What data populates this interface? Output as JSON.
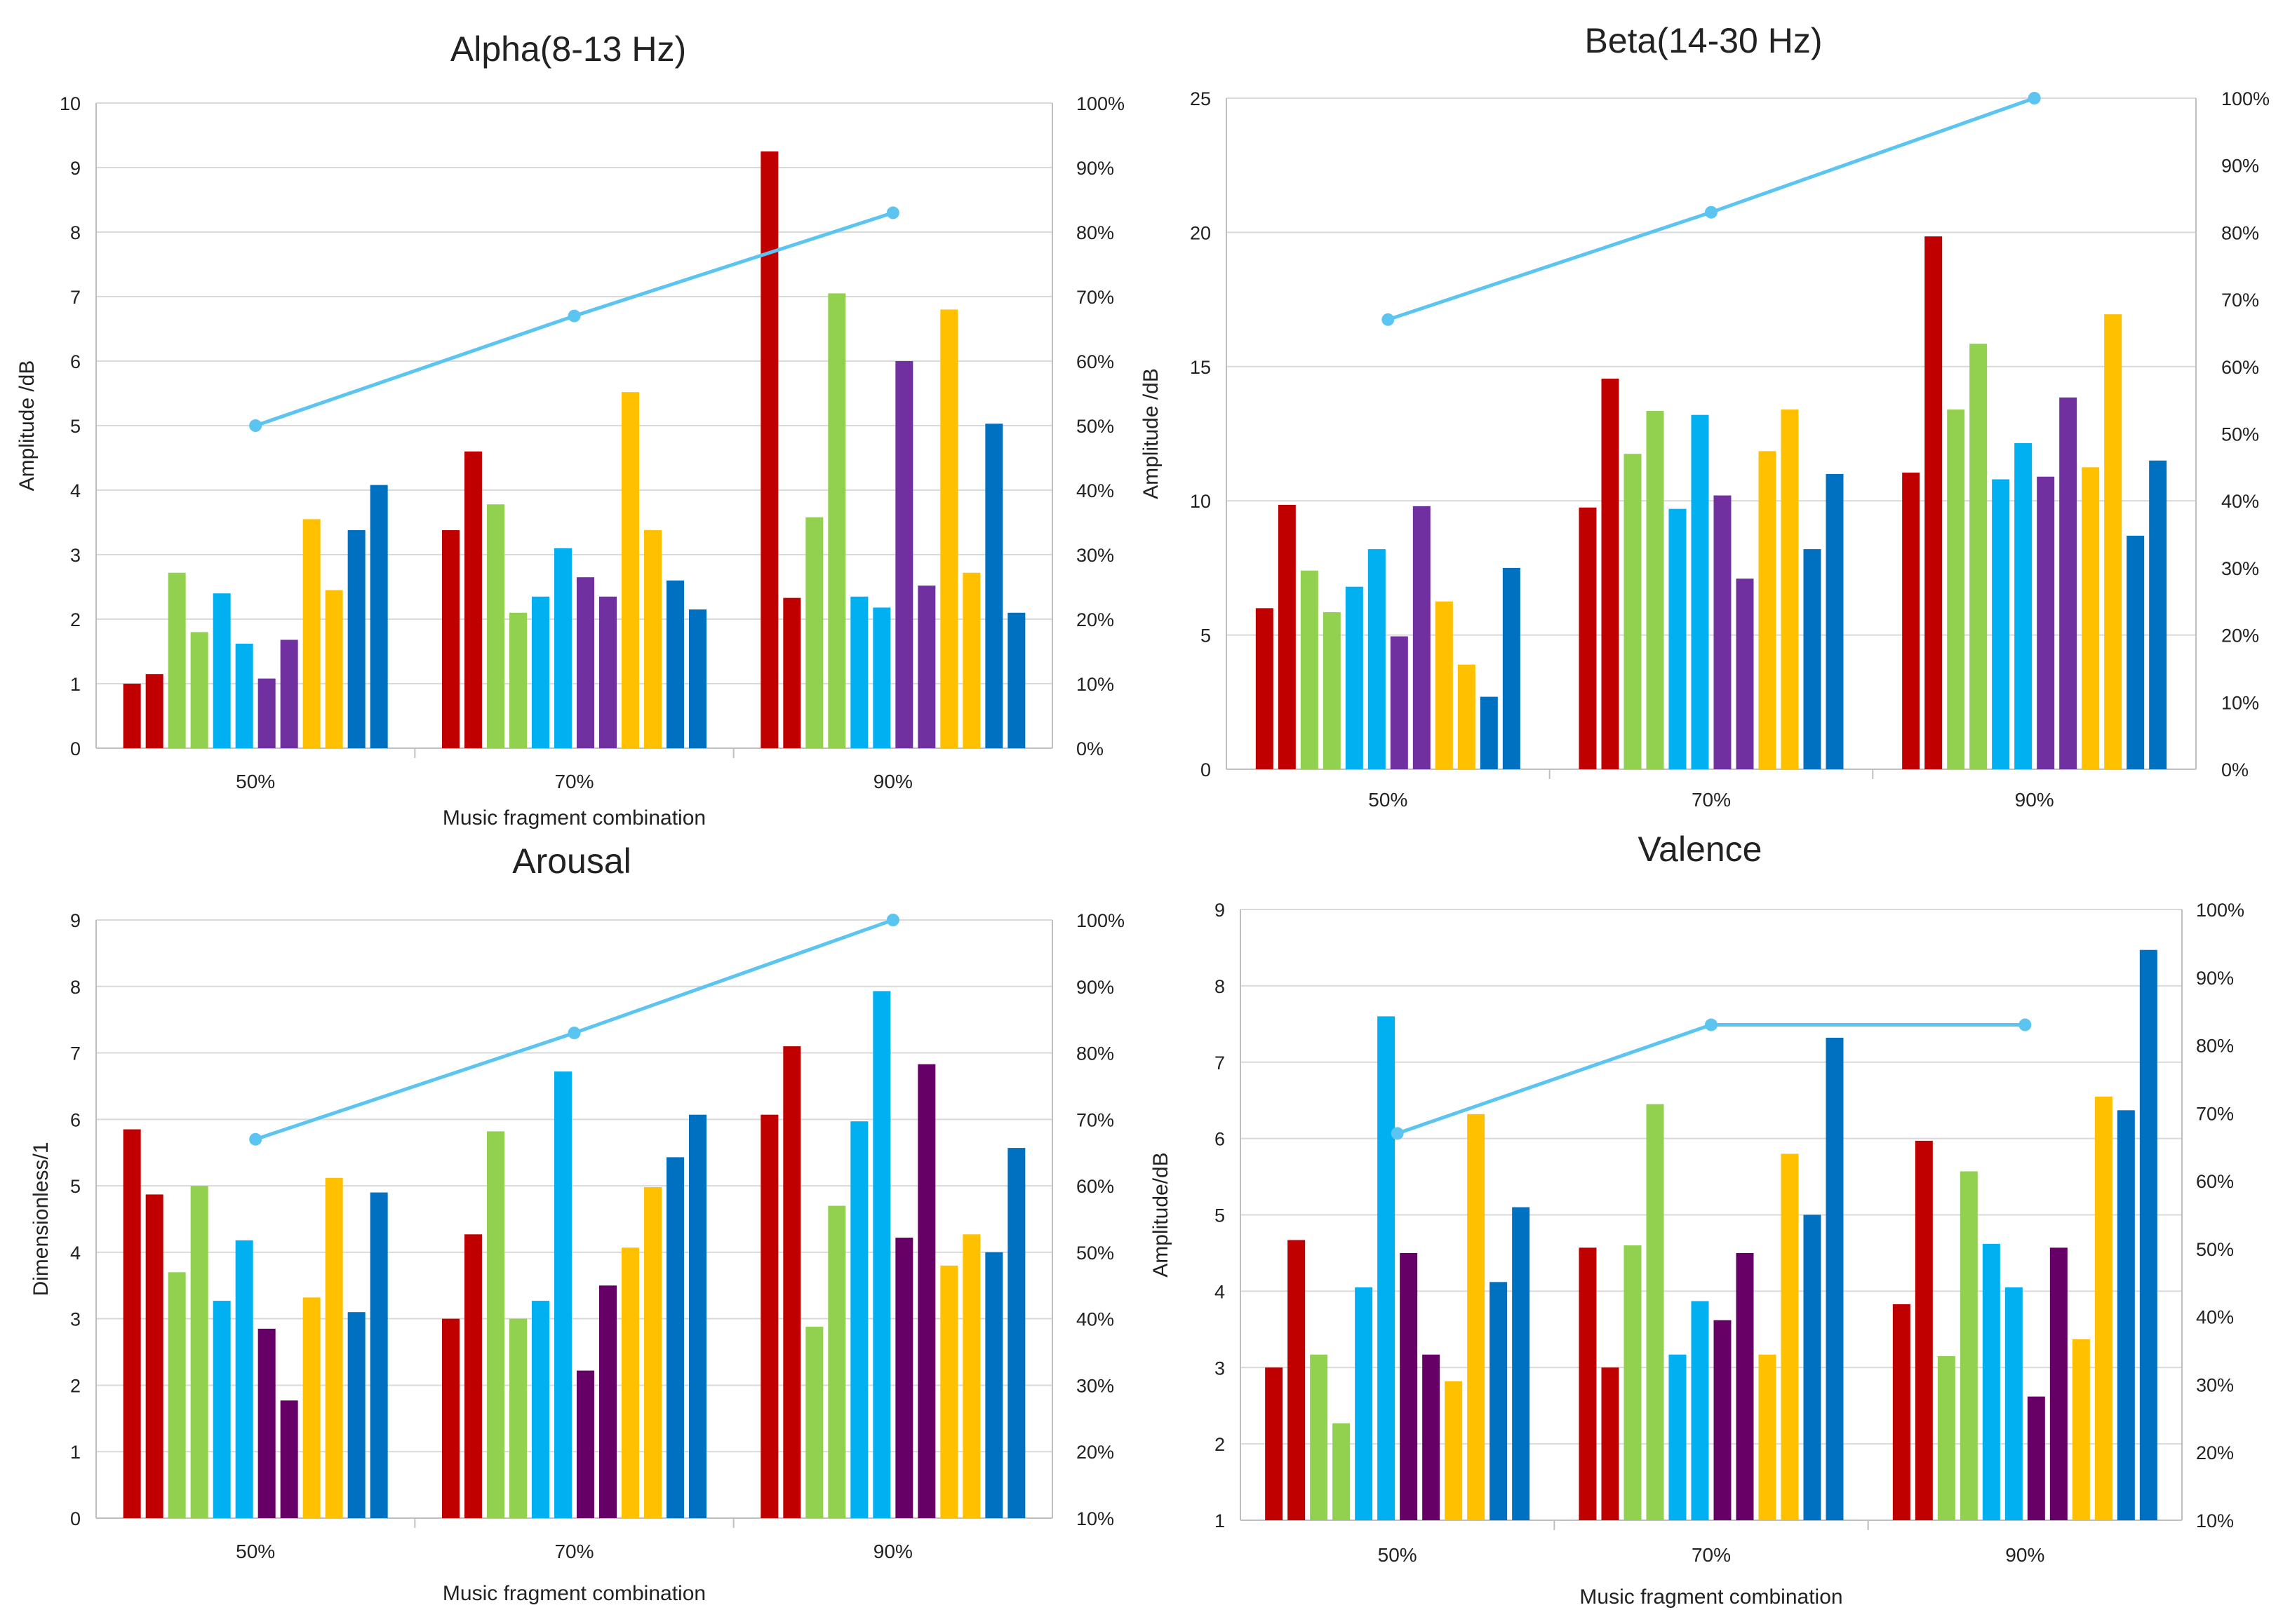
{
  "chart_data": [
    {
      "type": "bar",
      "title": "Alpha(8-13 Hz)",
      "xlabel": "Music fragment combination",
      "ylabel": "Amplitude /dB",
      "ylim": [
        0,
        10
      ],
      "yticks": [
        "0",
        "1",
        "2",
        "3",
        "4",
        "5",
        "6",
        "7",
        "8",
        "9",
        "10"
      ],
      "y2lim": [
        0,
        100
      ],
      "y2ticks": [
        "0%",
        "10%",
        "20%",
        "30%",
        "40%",
        "50%",
        "60%",
        "70%",
        "80%",
        "90%",
        "100%"
      ],
      "categories": [
        "50%",
        "70%",
        "90%"
      ],
      "bar_colors": [
        "#C00000",
        "#C00000",
        "#92D050",
        "#92D050",
        "#00B0F0",
        "#00B0F0",
        "#7030A0",
        "#7030A0",
        "#FFC000",
        "#FFC000",
        "#0070C0",
        "#0070C0"
      ],
      "groups": [
        [
          1.0,
          1.15,
          2.72,
          1.8,
          2.4,
          1.62,
          1.08,
          1.68,
          3.55,
          2.45,
          3.38,
          4.08
        ],
        [
          3.38,
          4.6,
          3.78,
          2.1,
          2.35,
          3.1,
          2.65,
          2.35,
          5.52,
          3.38,
          2.6,
          2.15
        ],
        [
          9.25,
          2.33,
          3.58,
          7.05,
          2.35,
          2.18,
          6.0,
          2.52,
          6.8,
          2.72,
          5.03,
          2.1
        ]
      ],
      "line": {
        "color": "#5BC4F1",
        "values_percent": [
          50,
          67,
          83
        ]
      }
    },
    {
      "type": "bar",
      "title": "Beta(14-30 Hz)",
      "xlabel": "",
      "ylabel": "Amplitude /dB",
      "ylim": [
        0,
        25
      ],
      "yticks": [
        "0",
        "5",
        "10",
        "15",
        "20",
        "25"
      ],
      "y2lim": [
        0,
        100
      ],
      "y2ticks": [
        "0%",
        "10%",
        "20%",
        "30%",
        "40%",
        "50%",
        "60%",
        "70%",
        "80%",
        "90%",
        "100%"
      ],
      "categories": [
        "50%",
        "70%",
        "90%"
      ],
      "bar_colors": [
        "#C00000",
        "#C00000",
        "#92D050",
        "#92D050",
        "#00B0F0",
        "#00B0F0",
        "#7030A0",
        "#7030A0",
        "#FFC000",
        "#FFC000",
        "#0070C0",
        "#0070C0"
      ],
      "groups": [
        [
          6.0,
          9.85,
          7.4,
          5.85,
          6.8,
          8.2,
          4.95,
          9.8,
          6.25,
          3.9,
          2.7,
          7.5
        ],
        [
          9.75,
          14.55,
          11.75,
          13.35,
          9.7,
          13.2,
          10.2,
          7.1,
          11.85,
          13.4,
          8.2,
          11.0
        ],
        [
          11.05,
          19.85,
          13.4,
          15.85,
          10.8,
          12.15,
          10.9,
          13.85,
          11.25,
          16.95,
          8.7,
          11.5
        ]
      ],
      "line": {
        "color": "#5BC4F1",
        "values_percent": [
          67,
          83,
          100
        ]
      }
    },
    {
      "type": "bar",
      "title": "Arousal",
      "xlabel": "Music fragment combination",
      "ylabel": "Dimensionless/1",
      "ylim": [
        0,
        9
      ],
      "yticks": [
        "0",
        "1",
        "2",
        "3",
        "4",
        "5",
        "6",
        "7",
        "8",
        "9"
      ],
      "y2lim": [
        10,
        100
      ],
      "y2ticks": [
        "10%",
        "20%",
        "30%",
        "40%",
        "50%",
        "60%",
        "70%",
        "80%",
        "90%",
        "100%"
      ],
      "categories": [
        "50%",
        "70%",
        "90%"
      ],
      "bar_colors": [
        "#C00000",
        "#C00000",
        "#92D050",
        "#92D050",
        "#00B0F0",
        "#00B0F0",
        "#660066",
        "#660066",
        "#FFC000",
        "#FFC000",
        "#0070C0",
        "#0070C0"
      ],
      "groups": [
        [
          5.85,
          4.87,
          3.7,
          5.0,
          3.27,
          4.18,
          2.85,
          1.77,
          3.32,
          5.12,
          3.1,
          4.9
        ],
        [
          3.0,
          4.27,
          5.82,
          3.0,
          3.27,
          6.72,
          2.22,
          3.5,
          4.07,
          4.98,
          5.43,
          6.07
        ],
        [
          6.07,
          7.1,
          2.88,
          4.7,
          5.97,
          7.93,
          4.22,
          6.83,
          3.8,
          4.27,
          4.0,
          5.57
        ]
      ],
      "line": {
        "color": "#5BC4F1",
        "values_percent": [
          67,
          83,
          100
        ]
      }
    },
    {
      "type": "bar",
      "title": "Valence",
      "xlabel": "Music fragment combination",
      "ylabel": "Amplitude/dB",
      "ylim": [
        1,
        9
      ],
      "yticks": [
        "1",
        "2",
        "3",
        "4",
        "5",
        "6",
        "7",
        "8",
        "9"
      ],
      "y2lim": [
        10,
        100
      ],
      "y2ticks": [
        "10%",
        "20%",
        "30%",
        "40%",
        "50%",
        "60%",
        "70%",
        "80%",
        "90%",
        "100%"
      ],
      "categories": [
        "50%",
        "70%",
        "90%"
      ],
      "bar_colors": [
        "#C00000",
        "#C00000",
        "#92D050",
        "#92D050",
        "#00B0F0",
        "#00B0F0",
        "#660066",
        "#660066",
        "#FFC000",
        "#FFC000",
        "#0070C0",
        "#0070C0"
      ],
      "groups": [
        [
          3.0,
          4.67,
          3.17,
          2.27,
          4.05,
          7.6,
          4.5,
          3.17,
          2.82,
          6.32,
          4.12,
          5.1
        ],
        [
          4.57,
          3.0,
          4.6,
          6.45,
          3.17,
          3.87,
          3.62,
          4.5,
          3.17,
          5.8,
          5.0,
          7.32
        ],
        [
          3.83,
          5.97,
          3.15,
          5.57,
          4.62,
          4.05,
          2.62,
          4.57,
          3.37,
          6.55,
          6.37,
          8.47
        ]
      ],
      "line": {
        "color": "#5BC4F1",
        "values_percent": [
          67,
          83,
          83
        ]
      }
    }
  ]
}
